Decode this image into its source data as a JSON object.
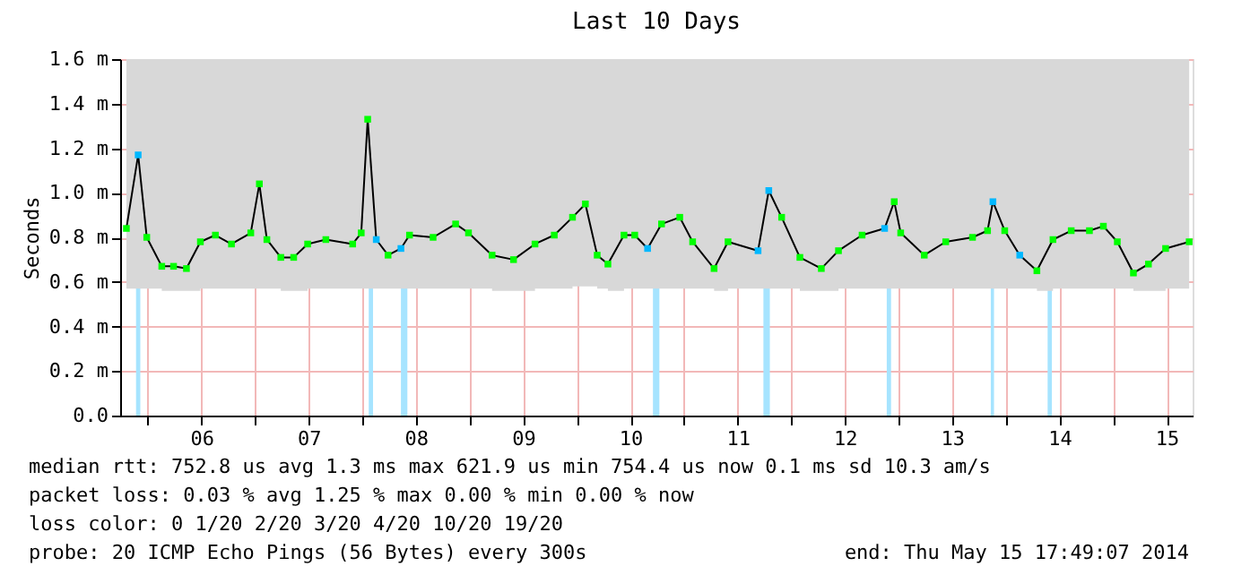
{
  "chart_data": {
    "type": "line",
    "title": "Last 10 Days",
    "ylabel": "Seconds",
    "x": [
      5.8,
      5.91,
      5.99,
      6.13,
      6.24,
      6.36,
      6.49,
      6.63,
      6.78,
      6.96,
      7.04,
      7.11,
      7.24,
      7.36,
      7.49,
      7.66,
      7.91,
      7.99,
      8.05,
      8.13,
      8.24,
      8.36,
      8.44,
      8.66,
      8.87,
      8.99,
      9.21,
      9.41,
      9.61,
      9.79,
      9.96,
      10.08,
      10.19,
      10.29,
      10.44,
      10.54,
      10.66,
      10.79,
      10.96,
      11.08,
      11.28,
      11.41,
      11.69,
      11.79,
      11.91,
      12.08,
      12.28,
      12.44,
      12.66,
      12.87,
      12.96,
      13.02,
      13.24,
      13.44,
      13.69,
      13.83,
      13.88,
      13.99,
      14.13,
      14.29,
      14.44,
      14.61,
      14.78,
      14.91,
      15.04,
      15.19,
      15.33,
      15.49,
      15.71
    ],
    "series": [
      {
        "color": "#00ff00",
        "marker": "square",
        "values": [
          0.84,
          1.17,
          0.8,
          0.67,
          0.67,
          0.66,
          0.78,
          0.81,
          0.77,
          0.82,
          1.04,
          0.79,
          0.71,
          0.71,
          0.77,
          0.79,
          0.77,
          0.82,
          1.33,
          0.79,
          0.72,
          0.75,
          0.81,
          0.8,
          0.86,
          0.82,
          0.72,
          0.7,
          0.77,
          0.81,
          0.89,
          0.95,
          0.72,
          0.68,
          0.81,
          0.81,
          0.75,
          0.86,
          0.89,
          0.78,
          0.66,
          0.78,
          0.74,
          1.01,
          0.89,
          0.71,
          0.66,
          0.74,
          0.81,
          0.84,
          0.96,
          0.82,
          0.72,
          0.78,
          0.8,
          0.83,
          0.96,
          0.83,
          0.72,
          0.65,
          0.79,
          0.83,
          0.83,
          0.85,
          0.78,
          0.64,
          0.68,
          0.75,
          0.78
        ],
        "colors": [
          null,
          "#00b8ff",
          null,
          null,
          null,
          null,
          null,
          null,
          null,
          null,
          null,
          null,
          null,
          null,
          null,
          null,
          null,
          null,
          null,
          "#00b8ff",
          null,
          "#00b8ff",
          null,
          null,
          null,
          null,
          null,
          null,
          null,
          null,
          null,
          null,
          null,
          null,
          null,
          null,
          "#00b8ff",
          null,
          null,
          null,
          null,
          null,
          "#00b8ff",
          "#00b8ff",
          null,
          null,
          null,
          null,
          null,
          "#00b8ff",
          null,
          null,
          null,
          null,
          null,
          null,
          "#00b8ff",
          null,
          "#00b8ff",
          null,
          null,
          null,
          null,
          null,
          null,
          null,
          null,
          null,
          null
        ],
        "lower": [
          0.57,
          0.57,
          0.57,
          0.56,
          0.56,
          0.56,
          0.57,
          0.57,
          0.57,
          0.57,
          0.57,
          0.57,
          0.56,
          0.56,
          0.57,
          0.57,
          0.57,
          0.57,
          0.57,
          0.57,
          0.57,
          0.57,
          0.57,
          0.57,
          0.57,
          0.57,
          0.56,
          0.56,
          0.57,
          0.57,
          0.58,
          0.58,
          0.57,
          0.56,
          0.57,
          0.57,
          0.57,
          0.57,
          0.57,
          0.57,
          0.56,
          0.57,
          0.57,
          0.57,
          0.57,
          0.56,
          0.56,
          0.57,
          0.57,
          0.57,
          0.57,
          0.57,
          0.57,
          0.57,
          0.57,
          0.57,
          0.57,
          0.57,
          0.57,
          0.56,
          0.57,
          0.57,
          0.57,
          0.57,
          0.57,
          0.56,
          0.56,
          0.57,
          0.57
        ],
        "upper": [
          1.6,
          1.6,
          1.6,
          1.6,
          1.6,
          1.6,
          1.6,
          1.6,
          1.6,
          1.6,
          1.6,
          1.6,
          1.6,
          1.6,
          1.6,
          1.6,
          1.6,
          1.6,
          1.6,
          1.6,
          1.6,
          1.6,
          1.6,
          1.6,
          1.6,
          1.6,
          1.6,
          1.6,
          1.6,
          1.6,
          1.6,
          1.6,
          1.6,
          1.6,
          1.6,
          1.6,
          1.6,
          1.6,
          1.6,
          1.6,
          1.6,
          1.6,
          1.6,
          1.6,
          1.6,
          1.6,
          1.6,
          1.6,
          1.6,
          1.6,
          1.6,
          1.6,
          1.6,
          1.6,
          1.6,
          1.6,
          1.6,
          1.6,
          1.6,
          1.6,
          1.6,
          1.6,
          1.6,
          1.6,
          1.6,
          1.6,
          1.6,
          1.6,
          1.6
        ]
      }
    ],
    "bands": [
      {
        "axis": "x",
        "from": 5.89,
        "to": 5.93,
        "color": "#a6e4ff"
      },
      {
        "axis": "x",
        "from": 8.06,
        "to": 8.1,
        "color": "#a6e4ff"
      },
      {
        "axis": "x",
        "from": 8.36,
        "to": 8.42,
        "color": "#a6e4ff"
      },
      {
        "axis": "x",
        "from": 10.71,
        "to": 10.77,
        "color": "#a6e4ff"
      },
      {
        "axis": "x",
        "from": 11.74,
        "to": 11.8,
        "color": "#a6e4ff"
      },
      {
        "axis": "x",
        "from": 12.89,
        "to": 12.93,
        "color": "#a6e4ff"
      },
      {
        "axis": "x",
        "from": 13.86,
        "to": 13.89,
        "color": "#a6e4ff"
      },
      {
        "axis": "x",
        "from": 14.39,
        "to": 14.43,
        "color": "#a6e4ff"
      }
    ],
    "xlim": [
      5.742,
      15.742
    ],
    "xticks": [
      {
        "value": 6,
        "label": null
      },
      {
        "value": 6.5,
        "label": "06"
      },
      {
        "value": 7,
        "label": null
      },
      {
        "value": 7.5,
        "label": "07"
      },
      {
        "value": 8,
        "label": null
      },
      {
        "value": 8.5,
        "label": "08"
      },
      {
        "value": 9,
        "label": null
      },
      {
        "value": 9.5,
        "label": "09"
      },
      {
        "value": 10,
        "label": null
      },
      {
        "value": 10.5,
        "label": "10"
      },
      {
        "value": 11,
        "label": null
      },
      {
        "value": 11.5,
        "label": "11"
      },
      {
        "value": 12,
        "label": null
      },
      {
        "value": 12.5,
        "label": "12"
      },
      {
        "value": 13,
        "label": null
      },
      {
        "value": 13.5,
        "label": "13"
      },
      {
        "value": 14,
        "label": null
      },
      {
        "value": 14.5,
        "label": "14"
      },
      {
        "value": 15,
        "label": null
      },
      {
        "value": 15.5,
        "label": "15"
      }
    ],
    "ylim": [
      0,
      1.6
    ],
    "yticks": [
      {
        "value": 0,
        "label": "0.0"
      },
      {
        "value": 0.2,
        "label": "0.2 m"
      },
      {
        "value": 0.4,
        "label": "0.4 m"
      },
      {
        "value": 0.6,
        "label": "0.6 m"
      },
      {
        "value": 0.8,
        "label": "0.8 m"
      },
      {
        "value": 1.0,
        "label": "1.0 m"
      },
      {
        "value": 1.2,
        "label": "1.2 m"
      },
      {
        "value": 1.4,
        "label": "1.4 m"
      },
      {
        "value": 1.6,
        "label": "1.6 m"
      }
    ],
    "grid": true,
    "annotations": [
      "median rtt:  752.8 us avg   1.3 ms max   621.9 us min   754.4 us now   0.1 ms sd   10.3    am/s",
      "packet loss: 0.03 % avg   1.25 % max   0.00 % min   0.00 % now",
      "loss color:  0  1/20  2/20  3/20  4/20  10/20  19/20",
      "probe:       20 ICMP Echo Pings (56 Bytes) every 300s",
      "end: Thu May 15 17:49:07 2014"
    ]
  }
}
